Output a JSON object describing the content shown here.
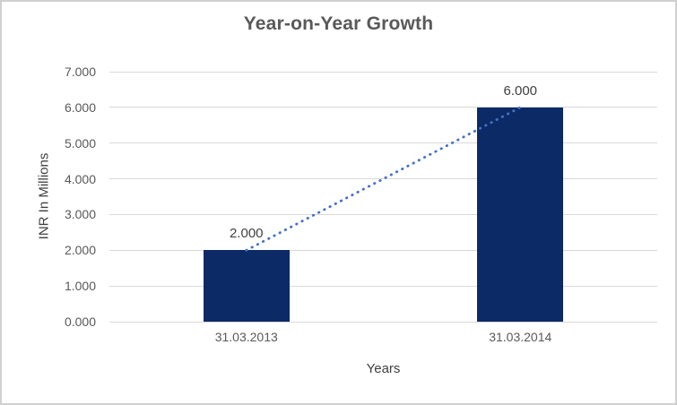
{
  "chart_data": {
    "type": "bar",
    "title": "Year-on-Year Growth",
    "categories": [
      "31.03.2013",
      "31.03.2014"
    ],
    "values": [
      2.0,
      6.0
    ],
    "data_labels": [
      "2.000",
      "6.000"
    ],
    "xlabel": "Years",
    "ylabel": "INR In Millions",
    "ylim": [
      0,
      7
    ],
    "ytick_labels": [
      "0.000",
      "1.000",
      "2.000",
      "3.000",
      "4.000",
      "5.000",
      "6.000",
      "7.000"
    ],
    "grid": true,
    "legend_position": "none",
    "trendline": {
      "type": "linear",
      "style": "dotted",
      "connects": "bar-top-centers"
    },
    "colors": {
      "bar": "#0b2a66",
      "trendline": "#4472c4",
      "gridline": "#d9d9d9",
      "title_text": "#595959",
      "tick_text": "#595959",
      "axis_title_text": "#404040",
      "data_label_text": "#404040",
      "border": "#d0d0d0",
      "background": "#ffffff"
    }
  }
}
